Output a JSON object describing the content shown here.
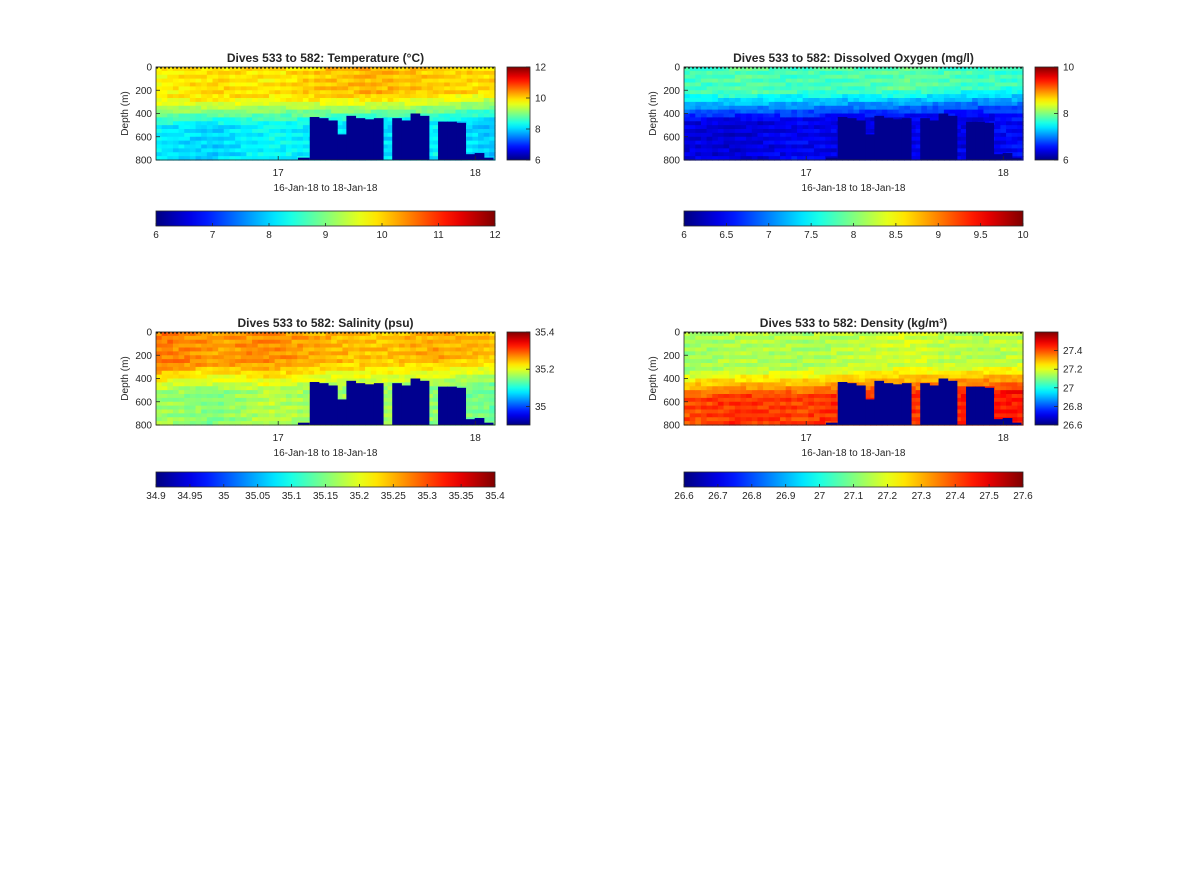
{
  "figure": {
    "background": "#ffffff",
    "colormap": "jet"
  },
  "chart_data": [
    {
      "type": "heatmap",
      "title": "Dives 533 to 582: Temperature (°C)",
      "xlabel": "16-Jan-18 to 18-Jan-18",
      "ylabel": "Depth (m)",
      "x_ticks": [
        "17",
        "18"
      ],
      "y_ticks": [
        "0",
        "200",
        "400",
        "600",
        "800"
      ],
      "ylim": [
        0,
        800
      ],
      "y_reversed": true,
      "clim": [
        6,
        12
      ],
      "colorbar_ticks": [
        "12",
        "10",
        "8",
        "6"
      ],
      "horizontal_colorbar_ticks": [
        "6",
        "7",
        "8",
        "9",
        "10",
        "11",
        "12"
      ],
      "surface_profile": [
        0.65,
        0.68,
        0.66,
        0.7,
        0.72,
        0.69,
        0.68
      ],
      "deep_profile": [
        0.38,
        0.35,
        0.4,
        0.37,
        0.36,
        0.39,
        0.34
      ],
      "deep_start_depth_m": 400,
      "no_data_bottom_depth_m": [
        430,
        440,
        460,
        580,
        420,
        440,
        450,
        440,
        420,
        440,
        460,
        400,
        420,
        460,
        470,
        470,
        480,
        750,
        740,
        780
      ]
    },
    {
      "type": "heatmap",
      "title": "Dives 533 to 582: Dissolved Oxygen (mg/l)",
      "xlabel": "16-Jan-18 to 18-Jan-18",
      "ylabel": "Depth (m)",
      "x_ticks": [
        "17",
        "18"
      ],
      "y_ticks": [
        "0",
        "200",
        "400",
        "600",
        "800"
      ],
      "ylim": [
        0,
        800
      ],
      "y_reversed": true,
      "clim": [
        6,
        10
      ],
      "colorbar_ticks": [
        "10",
        "8",
        "6"
      ],
      "horizontal_colorbar_ticks": [
        "6",
        "6.5",
        "7",
        "7.5",
        "8",
        "8.5",
        "9",
        "9.5",
        "10"
      ],
      "surface_profile": [
        0.45,
        0.48,
        0.46,
        0.47,
        0.49,
        0.46,
        0.45
      ],
      "deep_profile": [
        0.12,
        0.1,
        0.14,
        0.11,
        0.13,
        0.12,
        0.15
      ],
      "deep_start_depth_m": 350,
      "no_data_bottom_depth_m": [
        430,
        440,
        460,
        580,
        420,
        440,
        450,
        440,
        420,
        440,
        460,
        400,
        420,
        460,
        470,
        470,
        480,
        750,
        740,
        780
      ]
    },
    {
      "type": "heatmap",
      "title": "Dives 533 to 582: Salinity (psu)",
      "xlabel": "16-Jan-18 to 18-Jan-18",
      "ylabel": "Depth (m)",
      "x_ticks": [
        "17",
        "18"
      ],
      "y_ticks": [
        "0",
        "200",
        "400",
        "600",
        "800"
      ],
      "ylim": [
        0,
        800
      ],
      "y_reversed": true,
      "clim": [
        34.9,
        35.4
      ],
      "colorbar_ticks": [
        "35.4",
        "35.2",
        "35"
      ],
      "horizontal_colorbar_ticks": [
        "34.9",
        "34.95",
        "35",
        "35.05",
        "35.1",
        "35.15",
        "35.2",
        "35.25",
        "35.3",
        "35.35",
        "35.4"
      ],
      "surface_profile": [
        0.78,
        0.74,
        0.76,
        0.72,
        0.7,
        0.73,
        0.71
      ],
      "deep_profile": [
        0.55,
        0.52,
        0.58,
        0.54,
        0.56,
        0.53,
        0.5
      ],
      "deep_start_depth_m": 400,
      "no_data_bottom_depth_m": [
        430,
        440,
        460,
        580,
        420,
        440,
        450,
        440,
        420,
        440,
        460,
        400,
        420,
        460,
        470,
        470,
        480,
        750,
        740,
        780
      ]
    },
    {
      "type": "heatmap",
      "title": "Dives 533 to 582: Density (kg/m³)",
      "xlabel": "16-Jan-18 to 18-Jan-18",
      "ylabel": "Depth (m)",
      "x_ticks": [
        "17",
        "18"
      ],
      "y_ticks": [
        "0",
        "200",
        "400",
        "600",
        "800"
      ],
      "ylim": [
        0,
        800
      ],
      "y_reversed": true,
      "clim": [
        26.6,
        27.6
      ],
      "colorbar_ticks": [
        "27.4",
        "27.2",
        "27",
        "26.8",
        "26.6"
      ],
      "horizontal_colorbar_ticks": [
        "26.6",
        "26.7",
        "26.8",
        "26.9",
        "27",
        "27.1",
        "27.2",
        "27.3",
        "27.4",
        "27.5",
        "27.6"
      ],
      "surface_profile": [
        0.55,
        0.57,
        0.56,
        0.58,
        0.6,
        0.57,
        0.58
      ],
      "deep_profile": [
        0.82,
        0.85,
        0.83,
        0.86,
        0.84,
        0.87,
        0.88
      ],
      "deep_start_depth_m": 450,
      "no_data_bottom_depth_m": [
        430,
        440,
        460,
        580,
        420,
        440,
        450,
        440,
        420,
        440,
        460,
        400,
        420,
        460,
        470,
        470,
        480,
        750,
        740,
        780
      ]
    }
  ]
}
